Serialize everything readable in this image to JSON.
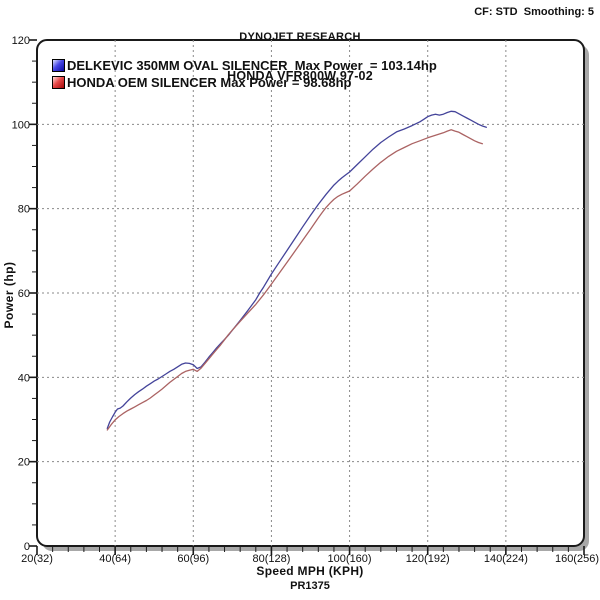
{
  "header": {
    "title": "DYNOJET RESEARCH",
    "subtitle": "HONDA VFR800W 97-02",
    "info": "CF: STD  Smoothing: 5"
  },
  "legend": {
    "items": [
      {
        "label": "DELKEVIC 350MM OVAL SILENCER  Max Power  = 103.14hp",
        "color": "#2a2ab4"
      },
      {
        "label": "HONDA OEM SILENCER Max Power = 98.68hp",
        "color": "#b43c3c"
      }
    ]
  },
  "footer": {
    "run_id": "PR1375"
  },
  "chart_data": {
    "type": "line",
    "title": "DYNOJET RESEARCH",
    "subtitle": "HONDA VFR800W 97-02",
    "xlabel": "Speed MPH (KPH)",
    "ylabel": "Power (hp)",
    "xlim": [
      20,
      160
    ],
    "ylim": [
      0,
      120
    ],
    "grid": "dashed",
    "grid_color": "#8a8a8a",
    "border_color": "#1a1a1a",
    "shadow_color": "#a8a8a8",
    "legend_position": "top-left-inside",
    "x_major_ticks": [
      {
        "v": 20,
        "label": "20(32)"
      },
      {
        "v": 40,
        "label": "40(64)"
      },
      {
        "v": 60,
        "label": "60(96)"
      },
      {
        "v": 80,
        "label": "80(128)"
      },
      {
        "v": 100,
        "label": "100(160)"
      },
      {
        "v": 120,
        "label": "120(192)"
      },
      {
        "v": 140,
        "label": "140(224)"
      },
      {
        "v": 160,
        "label": "160(256)"
      }
    ],
    "y_major_ticks": [
      {
        "v": 0,
        "label": "0"
      },
      {
        "v": 20,
        "label": "20"
      },
      {
        "v": 40,
        "label": "40"
      },
      {
        "v": 60,
        "label": "60"
      },
      {
        "v": 80,
        "label": "80"
      },
      {
        "v": 100,
        "label": "100"
      },
      {
        "v": 120,
        "label": "120"
      }
    ],
    "x_minor_step": 4,
    "y_minor_step": 5,
    "x_gridlines": [
      40,
      60,
      80,
      100,
      120,
      140
    ],
    "y_gridlines": [
      20,
      40,
      60,
      80,
      100
    ],
    "series": [
      {
        "name": "DELKEVIC 350MM OVAL SILENCER",
        "max_power_hp": 103.14,
        "color": "#44449a",
        "points": [
          [
            38,
            27.9
          ],
          [
            38.6,
            29.4
          ],
          [
            39.3,
            30.6
          ],
          [
            40,
            31.7
          ],
          [
            40.6,
            32.5
          ],
          [
            41.3,
            32.7
          ],
          [
            42,
            33.2
          ],
          [
            43,
            34.2
          ],
          [
            44,
            35.1
          ],
          [
            45,
            35.9
          ],
          [
            46,
            36.6
          ],
          [
            47,
            37.2
          ],
          [
            48,
            37.9
          ],
          [
            49,
            38.5
          ],
          [
            50,
            39.1
          ],
          [
            51,
            39.6
          ],
          [
            52,
            40.2
          ],
          [
            53,
            40.8
          ],
          [
            54,
            41.4
          ],
          [
            55,
            41.9
          ],
          [
            56,
            42.5
          ],
          [
            57,
            43.1
          ],
          [
            58,
            43.4
          ],
          [
            59,
            43.3
          ],
          [
            60,
            43.0
          ],
          [
            61,
            42.1
          ],
          [
            62,
            42.5
          ],
          [
            63,
            43.6
          ],
          [
            64,
            44.8
          ],
          [
            65,
            45.9
          ],
          [
            66,
            47.0
          ],
          [
            67,
            48.0
          ],
          [
            68,
            49.0
          ],
          [
            69,
            50.0
          ],
          [
            70,
            51.2
          ],
          [
            72,
            53.5
          ],
          [
            74,
            55.9
          ],
          [
            76,
            58.4
          ],
          [
            77,
            60.0
          ],
          [
            78,
            61.4
          ],
          [
            80,
            64.5
          ],
          [
            82,
            67.3
          ],
          [
            84,
            70.1
          ],
          [
            86,
            72.9
          ],
          [
            88,
            75.7
          ],
          [
            90,
            78.4
          ],
          [
            92,
            81.0
          ],
          [
            94,
            83.4
          ],
          [
            96,
            85.6
          ],
          [
            97,
            86.5
          ],
          [
            98,
            87.3
          ],
          [
            99,
            88.0
          ],
          [
            100,
            88.7
          ],
          [
            102,
            90.5
          ],
          [
            104,
            92.3
          ],
          [
            106,
            94.1
          ],
          [
            108,
            95.7
          ],
          [
            110,
            97.0
          ],
          [
            112,
            98.2
          ],
          [
            114,
            98.9
          ],
          [
            116,
            99.7
          ],
          [
            118,
            100.6
          ],
          [
            119,
            101.2
          ],
          [
            120,
            101.8
          ],
          [
            121,
            102.2
          ],
          [
            122,
            102.4
          ],
          [
            123,
            102.2
          ],
          [
            124,
            102.4
          ],
          [
            125,
            102.8
          ],
          [
            126,
            103.1
          ],
          [
            127,
            103.0
          ],
          [
            128,
            102.5
          ],
          [
            129,
            102.0
          ],
          [
            130,
            101.5
          ],
          [
            131,
            101.0
          ],
          [
            132,
            100.5
          ],
          [
            133,
            100.0
          ],
          [
            134,
            99.6
          ],
          [
            135,
            99.3
          ]
        ]
      },
      {
        "name": "HONDA OEM SILENCER",
        "max_power_hp": 98.68,
        "color": "#ab6363",
        "points": [
          [
            38,
            27.5
          ],
          [
            39,
            28.8
          ],
          [
            40,
            29.9
          ],
          [
            41,
            30.7
          ],
          [
            42,
            31.4
          ],
          [
            43,
            32.0
          ],
          [
            44,
            32.5
          ],
          [
            45,
            33.0
          ],
          [
            46,
            33.5
          ],
          [
            47,
            34.0
          ],
          [
            48,
            34.5
          ],
          [
            49,
            35.1
          ],
          [
            50,
            35.8
          ],
          [
            51,
            36.5
          ],
          [
            52,
            37.2
          ],
          [
            53,
            38.0
          ],
          [
            54,
            38.8
          ],
          [
            55,
            39.5
          ],
          [
            56,
            40.2
          ],
          [
            57,
            40.9
          ],
          [
            58,
            41.4
          ],
          [
            59,
            41.7
          ],
          [
            60,
            41.9
          ],
          [
            61,
            41.4
          ],
          [
            62,
            42.2
          ],
          [
            63,
            43.3
          ],
          [
            64,
            44.4
          ],
          [
            65,
            45.5
          ],
          [
            66,
            46.6
          ],
          [
            67,
            47.7
          ],
          [
            68,
            48.9
          ],
          [
            69,
            50.1
          ],
          [
            70,
            51.2
          ],
          [
            72,
            53.3
          ],
          [
            74,
            55.3
          ],
          [
            76,
            57.3
          ],
          [
            78,
            59.6
          ],
          [
            80,
            62.1
          ],
          [
            82,
            64.7
          ],
          [
            84,
            67.3
          ],
          [
            86,
            69.9
          ],
          [
            88,
            72.5
          ],
          [
            90,
            75.1
          ],
          [
            92,
            77.8
          ],
          [
            93,
            79.1
          ],
          [
            94,
            80.3
          ],
          [
            95,
            81.3
          ],
          [
            96,
            82.2
          ],
          [
            97,
            82.9
          ],
          [
            98,
            83.4
          ],
          [
            99,
            83.8
          ],
          [
            100,
            84.2
          ],
          [
            102,
            85.9
          ],
          [
            104,
            87.7
          ],
          [
            106,
            89.4
          ],
          [
            108,
            91.0
          ],
          [
            110,
            92.4
          ],
          [
            112,
            93.6
          ],
          [
            114,
            94.5
          ],
          [
            116,
            95.4
          ],
          [
            118,
            96.1
          ],
          [
            120,
            96.8
          ],
          [
            122,
            97.4
          ],
          [
            123,
            97.7
          ],
          [
            124,
            98.0
          ],
          [
            125,
            98.4
          ],
          [
            126,
            98.7
          ],
          [
            127,
            98.4
          ],
          [
            128,
            98.1
          ],
          [
            129,
            97.6
          ],
          [
            130,
            97.1
          ],
          [
            131,
            96.6
          ],
          [
            132,
            96.1
          ],
          [
            133,
            95.7
          ],
          [
            134,
            95.4
          ]
        ]
      }
    ]
  }
}
